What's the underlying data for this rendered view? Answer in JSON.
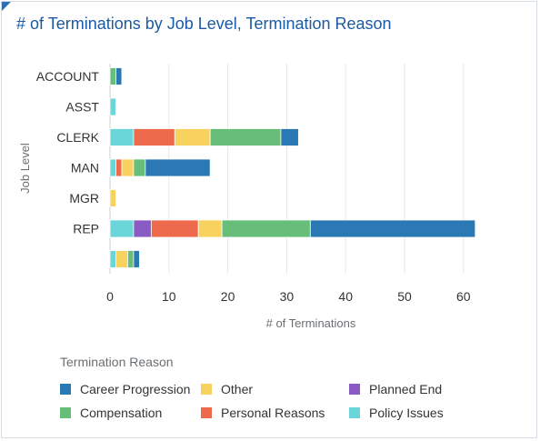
{
  "title": "# of Terminations by Job Level, Termination Reason",
  "chart_data": {
    "type": "bar",
    "orientation": "horizontal",
    "stacked": true,
    "categories": [
      "ACCOUNT",
      "ASST",
      "CLERK",
      "MAN",
      "MGR",
      "REP",
      ""
    ],
    "series": [
      {
        "name": "Policy Issues",
        "color": "#6bd6da",
        "values": [
          0,
          1,
          4,
          1,
          0,
          4,
          1
        ]
      },
      {
        "name": "Planned End",
        "color": "#8a5bc4",
        "values": [
          0,
          0,
          0,
          0,
          0,
          3,
          0
        ]
      },
      {
        "name": "Personal Reasons",
        "color": "#ee6a4d",
        "values": [
          0,
          0,
          7,
          1,
          0,
          8,
          0
        ]
      },
      {
        "name": "Other",
        "color": "#f8d25e",
        "values": [
          0,
          0,
          6,
          2,
          1,
          4,
          2
        ]
      },
      {
        "name": "Compensation",
        "color": "#66be79",
        "values": [
          1,
          0,
          12,
          2,
          0,
          15,
          1
        ]
      },
      {
        "name": "Career Progression",
        "color": "#2a78b4",
        "values": [
          1,
          0,
          3,
          11,
          0,
          28,
          1
        ]
      }
    ],
    "xlabel": "# of Terminations",
    "ylabel": "Job Level",
    "xlim": [
      0,
      63
    ],
    "xticks": [
      0,
      10,
      20,
      30,
      40,
      50,
      60
    ],
    "legend_title": "Termination Reason",
    "legend_placement": "bottom",
    "grid": true
  },
  "legend": {
    "title": "Termination Reason",
    "items": [
      {
        "label": "Career Progression",
        "color": "#2a78b4"
      },
      {
        "label": "Other",
        "color": "#f8d25e"
      },
      {
        "label": "Planned End",
        "color": "#8a5bc4"
      },
      {
        "label": "Compensation",
        "color": "#66be79"
      },
      {
        "label": "Personal Reasons",
        "color": "#ee6a4d"
      },
      {
        "label": "Policy Issues",
        "color": "#6bd6da"
      }
    ]
  }
}
